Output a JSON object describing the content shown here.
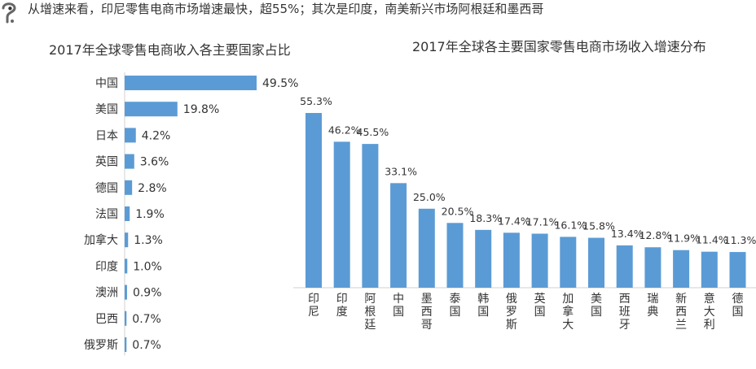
{
  "headline": {
    "bullet": "•",
    "text": "从增速来看，印尼零售电商市场增速最快，超55%；其次是印度，南美新兴市场阿根廷和墨西哥"
  },
  "colors": {
    "bar": "#5B9BD5",
    "text": "#333333"
  },
  "chart_data": [
    {
      "type": "bar",
      "orientation": "horizontal",
      "title": "2017年全球零售电商收入各主要国家占比",
      "categories": [
        "中国",
        "美国",
        "日本",
        "英国",
        "德国",
        "法国",
        "加拿大",
        "印度",
        "澳洲",
        "巴西",
        "俄罗斯"
      ],
      "values": [
        49.5,
        19.8,
        4.2,
        3.6,
        2.8,
        1.9,
        1.3,
        1.0,
        0.9,
        0.7,
        0.7
      ],
      "unit": "%",
      "xlim": [
        0,
        49.5
      ]
    },
    {
      "type": "bar",
      "orientation": "vertical",
      "title": "2017年全球各主要国家零售电商市场收入增速分布",
      "categories": [
        "印尼",
        "印度",
        "阿根廷",
        "中国",
        "墨西哥",
        "泰国",
        "韩国",
        "俄罗斯",
        "英国",
        "加拿大",
        "美国",
        "西班牙",
        "瑞典",
        "新西兰",
        "意大利",
        "德国"
      ],
      "values": [
        55.3,
        46.2,
        45.5,
        33.1,
        25.0,
        20.5,
        18.3,
        17.4,
        17.1,
        16.1,
        15.8,
        13.4,
        12.8,
        11.9,
        11.4,
        11.3
      ],
      "unit": "%",
      "ylim": [
        0,
        55.3
      ]
    }
  ]
}
